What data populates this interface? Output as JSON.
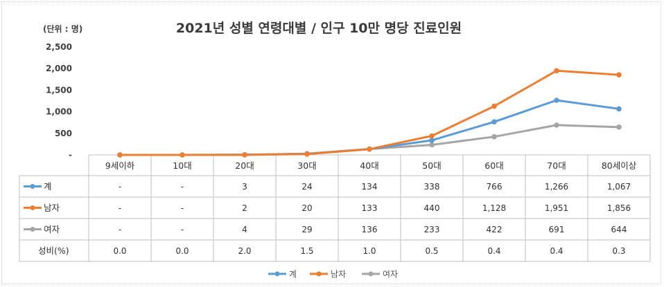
{
  "chart_data": {
    "type": "line",
    "title": "2021년 성별 연령대별 / 인구 10만 명당 진료인원",
    "unit_label": "(단위 : 명)",
    "ylim": [
      0,
      2500
    ],
    "yticks": [
      "-",
      "500",
      "1,000",
      "1,500",
      "2,000",
      "2,500"
    ],
    "ytick_values": [
      0,
      500,
      1000,
      1500,
      2000,
      2500
    ],
    "categories": [
      "9세이하",
      "10대",
      "20대",
      "30대",
      "40대",
      "50대",
      "60대",
      "70대",
      "80세이상"
    ],
    "series": [
      {
        "name": "계",
        "color": "#5B9BD5",
        "values": [
          0,
          0,
          3,
          24,
          134,
          338,
          766,
          1266,
          1067
        ],
        "labels": [
          "-",
          "-",
          "3",
          "24",
          "134",
          "338",
          "766",
          "1,266",
          "1,067"
        ]
      },
      {
        "name": "남자",
        "color": "#ED7D31",
        "values": [
          0,
          0,
          2,
          20,
          133,
          440,
          1128,
          1951,
          1856
        ],
        "labels": [
          "-",
          "-",
          "2",
          "20",
          "133",
          "440",
          "1,128",
          "1,951",
          "1,856"
        ]
      },
      {
        "name": "여자",
        "color": "#A5A5A5",
        "values": [
          0,
          0,
          4,
          29,
          136,
          233,
          422,
          691,
          644
        ],
        "labels": [
          "-",
          "-",
          "4",
          "29",
          "136",
          "233",
          "422",
          "691",
          "644"
        ]
      }
    ],
    "extra_row": {
      "name": "성비(%)",
      "labels": [
        "0.0",
        "0.0",
        "2.0",
        "1.5",
        "1.0",
        "0.5",
        "0.4",
        "0.4",
        "0.3"
      ]
    },
    "legend": [
      "계",
      "남자",
      "여자"
    ],
    "legend_position": "bottom",
    "grid": false
  }
}
